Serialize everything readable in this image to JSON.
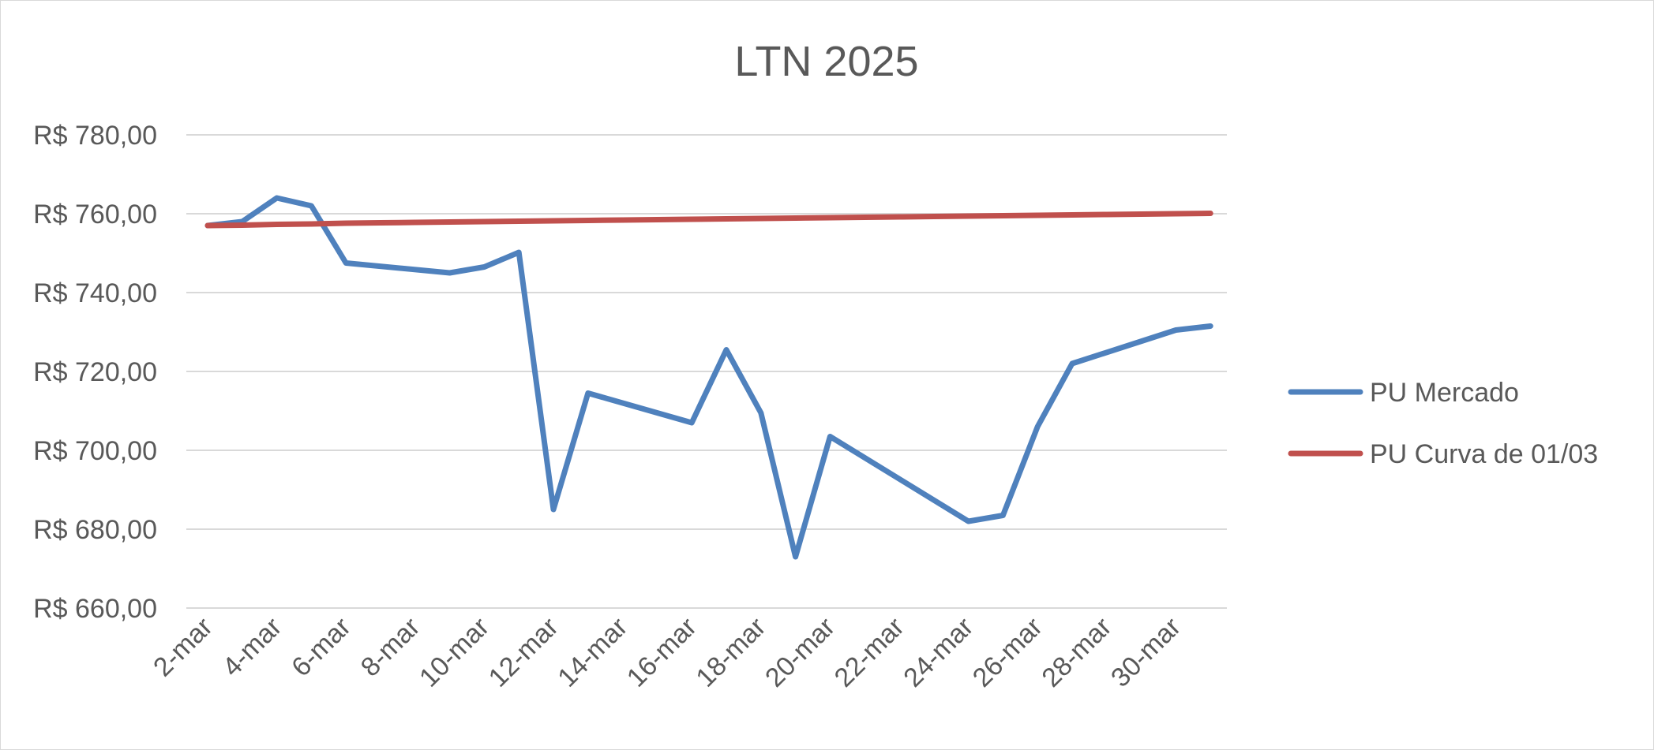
{
  "chart_data": {
    "type": "line",
    "title": "LTN 2025",
    "xlabel": "",
    "ylabel": "",
    "x": [
      "2-mar",
      "3-mar",
      "4-mar",
      "5-mar",
      "6-mar",
      "7-mar",
      "8-mar",
      "9-mar",
      "10-mar",
      "11-mar",
      "12-mar",
      "13-mar",
      "14-mar",
      "15-mar",
      "16-mar",
      "17-mar",
      "18-mar",
      "19-mar",
      "20-mar",
      "21-mar",
      "22-mar",
      "23-mar",
      "24-mar",
      "25-mar",
      "26-mar",
      "27-mar",
      "28-mar",
      "29-mar",
      "30-mar",
      "31-mar"
    ],
    "x_tick_labels": [
      "2-mar",
      "4-mar",
      "6-mar",
      "8-mar",
      "10-mar",
      "12-mar",
      "14-mar",
      "16-mar",
      "18-mar",
      "20-mar",
      "22-mar",
      "24-mar",
      "26-mar",
      "28-mar",
      "30-mar"
    ],
    "y_tick_labels": [
      "R$ 780,00",
      "R$ 760,00",
      "R$ 740,00",
      "R$ 720,00",
      "R$ 700,00",
      "R$ 680,00",
      "R$ 660,00"
    ],
    "ylim": [
      660,
      780
    ],
    "grid": true,
    "legend_position": "right",
    "series": [
      {
        "name": "PU Mercado",
        "color": "#4f81bd",
        "values": [
          757.0,
          758.0,
          764.0,
          762.0,
          747.5,
          null,
          null,
          745.0,
          746.5,
          750.2,
          685.0,
          714.5,
          null,
          null,
          707.0,
          725.5,
          709.5,
          673.0,
          703.5,
          null,
          null,
          null,
          682.0,
          683.5,
          706.0,
          722.0,
          null,
          null,
          730.5,
          731.5
        ]
      },
      {
        "name": "PU Curva de 01/03",
        "color": "#c0504d",
        "values": [
          757.0,
          757.1,
          757.3,
          757.4,
          757.6,
          757.7,
          757.8,
          757.9,
          758.0,
          758.1,
          758.2,
          758.3,
          758.4,
          758.5,
          758.6,
          758.7,
          758.8,
          758.9,
          759.0,
          759.1,
          759.2,
          759.3,
          759.4,
          759.5,
          759.6,
          759.7,
          759.8,
          759.9,
          760.0,
          760.1
        ]
      }
    ]
  }
}
